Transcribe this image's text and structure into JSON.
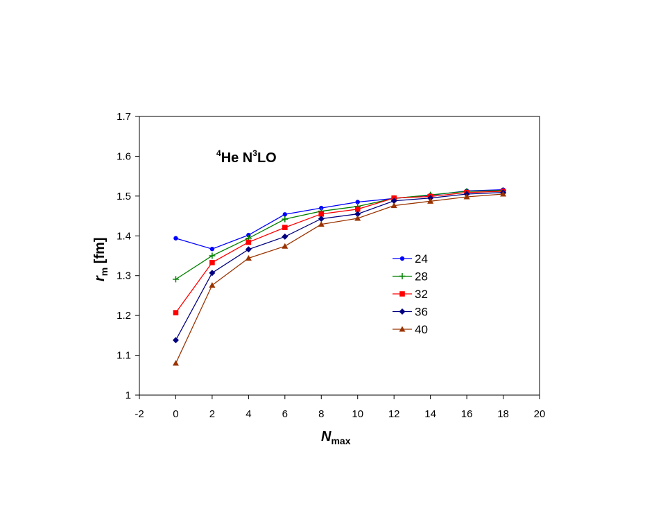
{
  "chart_data": {
    "type": "line",
    "title": {
      "prefix_sup": "4",
      "mid": "He N",
      "mid_sup": "3",
      "suffix": "LO"
    },
    "xlabel": {
      "main": "N",
      "sub": "max"
    },
    "ylabel": {
      "main": "r",
      "sub": "m",
      "unit": " [fm]"
    },
    "xlim": [
      -2,
      20
    ],
    "ylim": [
      1,
      1.7
    ],
    "x_ticks": [
      -2,
      0,
      2,
      4,
      6,
      8,
      10,
      12,
      14,
      16,
      18,
      20
    ],
    "y_ticks": [
      "1",
      "1.1",
      "1.2",
      "1.3",
      "1.4",
      "1.5",
      "1.6",
      "1.7"
    ],
    "grid": false,
    "legend_position": "right-center",
    "x": [
      0,
      2,
      4,
      6,
      8,
      10,
      12,
      14,
      16,
      18
    ],
    "series": [
      {
        "name": "24",
        "color": "#0000ff",
        "marker": "circle",
        "values": [
          1.394,
          1.367,
          1.402,
          1.454,
          1.47,
          1.485,
          1.494,
          1.502,
          1.513,
          1.516
        ]
      },
      {
        "name": "28",
        "color": "#008000",
        "marker": "plus",
        "values": [
          1.291,
          1.35,
          1.394,
          1.442,
          1.462,
          1.474,
          1.494,
          1.503,
          1.512,
          1.514
        ]
      },
      {
        "name": "32",
        "color": "#ff0000",
        "marker": "square",
        "values": [
          1.207,
          1.333,
          1.384,
          1.421,
          1.455,
          1.467,
          1.495,
          1.499,
          1.509,
          1.512
        ]
      },
      {
        "name": "36",
        "color": "#000080",
        "marker": "diamond",
        "values": [
          1.138,
          1.307,
          1.366,
          1.398,
          1.443,
          1.455,
          1.488,
          1.495,
          1.505,
          1.509
        ]
      },
      {
        "name": "40",
        "color": "#993300",
        "marker": "triangle",
        "values": [
          1.08,
          1.276,
          1.344,
          1.374,
          1.429,
          1.444,
          1.476,
          1.487,
          1.498,
          1.505
        ]
      }
    ]
  }
}
